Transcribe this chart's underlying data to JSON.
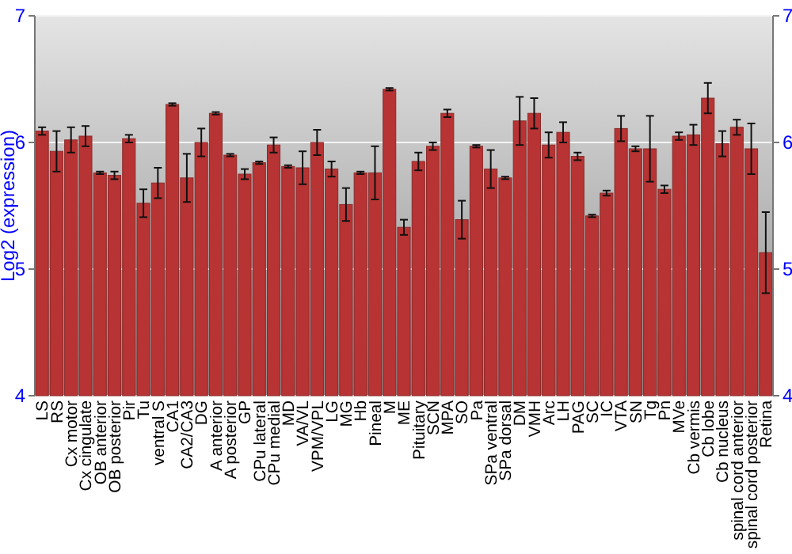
{
  "chart_data": {
    "type": "bar",
    "ylabel": "Log2 (expression)",
    "categories": [
      "LS",
      "RS",
      "Cx motor",
      "Cx cingulate",
      "OB anterior",
      "OB posterior",
      "Pir",
      "Tu",
      "ventral S",
      "CA1",
      "CA2/CA3",
      "DG",
      "A anterior",
      "A posterior",
      "GP",
      "CPu lateral",
      "CPu medial",
      "MD",
      "VA/VL",
      "VPM/VPL",
      "LG",
      "MG",
      "Hb",
      "Pineal",
      "M",
      "ME",
      "Pituitary",
      "SCN",
      "MPA",
      "SO",
      "Pa",
      "SPa ventral",
      "SPa dorsal",
      "DM",
      "VMH",
      "Arc",
      "LH",
      "PAG",
      "SC",
      "IC",
      "VTA",
      "SN",
      "Tg",
      "Pn",
      "MVe",
      "Cb vermis",
      "Cb lobe",
      "Cb nucleus",
      "spinal cord anterior",
      "spinal cord posterior",
      "Retina"
    ],
    "values": [
      6.09,
      5.93,
      6.02,
      6.05,
      5.76,
      5.74,
      6.03,
      5.52,
      5.68,
      6.3,
      5.72,
      6.0,
      6.23,
      5.9,
      5.75,
      5.84,
      5.98,
      5.81,
      5.8,
      6.0,
      5.79,
      5.51,
      5.76,
      5.76,
      6.42,
      5.33,
      5.85,
      5.97,
      6.23,
      5.39,
      5.97,
      5.79,
      5.72,
      6.17,
      6.23,
      5.98,
      6.08,
      5.89,
      5.42,
      5.6,
      6.11,
      5.95,
      5.95,
      5.63,
      6.05,
      6.06,
      6.35,
      5.99,
      6.12,
      5.95,
      5.13
    ],
    "errors": [
      0.03,
      0.16,
      0.1,
      0.08,
      0.01,
      0.03,
      0.03,
      0.11,
      0.12,
      0.01,
      0.19,
      0.11,
      0.01,
      0.01,
      0.04,
      0.01,
      0.06,
      0.01,
      0.13,
      0.1,
      0.06,
      0.13,
      0.01,
      0.21,
      0.01,
      0.06,
      0.07,
      0.03,
      0.03,
      0.15,
      0.01,
      0.15,
      0.01,
      0.19,
      0.12,
      0.1,
      0.08,
      0.03,
      0.01,
      0.02,
      0.1,
      0.02,
      0.26,
      0.03,
      0.03,
      0.08,
      0.12,
      0.1,
      0.06,
      0.2,
      0.32
    ],
    "color": "#b83333",
    "ylim": [
      4,
      7
    ],
    "yticks": [
      4,
      5,
      6,
      7
    ],
    "y2lim": [
      4,
      7
    ],
    "y2ticks": [
      4,
      5,
      6,
      7
    ],
    "grid": "y"
  }
}
